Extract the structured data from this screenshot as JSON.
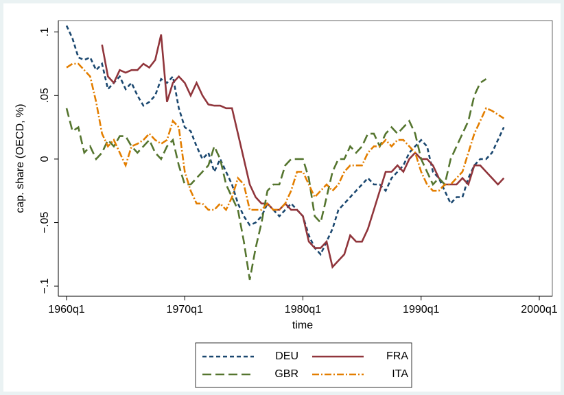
{
  "chart_data": {
    "type": "line",
    "y_label": "cap. share (OECD, %)",
    "x_label": "time",
    "x": [
      "1960q1",
      "1960q3",
      "1961q1",
      "1961q3",
      "1962q1",
      "1962q3",
      "1963q1",
      "1963q3",
      "1964q1",
      "1964q3",
      "1965q1",
      "1965q3",
      "1966q1",
      "1966q3",
      "1967q1",
      "1967q3",
      "1968q1",
      "1968q3",
      "1969q1",
      "1969q3",
      "1970q1",
      "1970q3",
      "1971q1",
      "1971q3",
      "1972q1",
      "1972q3",
      "1973q1",
      "1973q3",
      "1974q1",
      "1974q3",
      "1975q1",
      "1975q3",
      "1976q1",
      "1976q3",
      "1977q1",
      "1977q3",
      "1978q1",
      "1978q3",
      "1979q1",
      "1979q3",
      "1980q1",
      "1980q3",
      "1981q1",
      "1981q3",
      "1982q1",
      "1982q3",
      "1983q1",
      "1983q3",
      "1984q1",
      "1984q3",
      "1985q1",
      "1985q3",
      "1986q1",
      "1986q3",
      "1987q1",
      "1987q3",
      "1988q1",
      "1988q3",
      "1989q1",
      "1989q3",
      "1990q1",
      "1990q3",
      "1991q1",
      "1991q3",
      "1992q1",
      "1992q3",
      "1993q1",
      "1993q3",
      "1994q1",
      "1994q3",
      "1995q1",
      "1995q3",
      "1996q1",
      "1996q3",
      "1997q1"
    ],
    "series": [
      {
        "name": "DEU",
        "color": "#1a476f",
        "dash": "6,4",
        "values": [
          0.105,
          0.095,
          0.08,
          0.078,
          0.08,
          0.07,
          0.075,
          0.055,
          0.06,
          0.065,
          0.055,
          0.06,
          0.05,
          0.042,
          0.045,
          0.05,
          0.063,
          0.06,
          0.065,
          0.04,
          0.025,
          0.022,
          0.01,
          0,
          0.005,
          -0.01,
          0,
          -0.01,
          -0.02,
          -0.035,
          -0.045,
          -0.052,
          -0.05,
          -0.045,
          -0.035,
          -0.04,
          -0.045,
          -0.04,
          -0.035,
          -0.04,
          -0.045,
          -0.06,
          -0.07,
          -0.075,
          -0.065,
          -0.055,
          -0.04,
          -0.035,
          -0.03,
          -0.025,
          -0.02,
          -0.015,
          -0.02,
          -0.02,
          -0.025,
          -0.015,
          -0.01,
          -0.005,
          0.005,
          0.01,
          0.015,
          0.01,
          -0.01,
          -0.015,
          -0.025,
          -0.035,
          -0.03,
          -0.03,
          -0.015,
          -0.005,
          0,
          0,
          0.005,
          0.015,
          0.025
        ]
      },
      {
        "name": "FRA",
        "color": "#90353b",
        "dash": "",
        "values": [
          null,
          null,
          null,
          null,
          null,
          null,
          0.09,
          0.065,
          0.06,
          0.07,
          0.068,
          0.07,
          0.07,
          0.075,
          0.072,
          0.078,
          0.098,
          0.045,
          0.06,
          0.065,
          0.06,
          0.05,
          0.06,
          0.05,
          0.043,
          0.042,
          0.042,
          0.04,
          0.04,
          0.02,
          0,
          -0.02,
          -0.03,
          -0.035,
          -0.035,
          -0.04,
          -0.04,
          -0.035,
          -0.04,
          -0.04,
          -0.045,
          -0.065,
          -0.07,
          -0.07,
          -0.065,
          -0.085,
          -0.08,
          -0.075,
          -0.06,
          -0.065,
          -0.065,
          -0.055,
          -0.04,
          -0.025,
          -0.01,
          -0.01,
          -0.005,
          -0.01,
          0,
          0.005,
          0,
          0,
          -0.005,
          -0.015,
          -0.02,
          -0.02,
          -0.02,
          -0.015,
          -0.02,
          -0.005,
          -0.005,
          -0.01,
          -0.015,
          -0.02,
          -0.015
        ]
      },
      {
        "name": "GBR",
        "color": "#55752f",
        "dash": "13,6",
        "values": [
          0.04,
          0.022,
          0.025,
          0.005,
          0.01,
          0,
          0.005,
          0.015,
          0.01,
          0.018,
          0.018,
          0.01,
          0.005,
          0.01,
          0.015,
          0.005,
          0,
          0.01,
          0.015,
          -0.005,
          -0.02,
          -0.02,
          -0.015,
          -0.01,
          -0.005,
          0.01,
          0,
          -0.02,
          -0.03,
          -0.04,
          -0.065,
          -0.095,
          -0.07,
          -0.05,
          -0.025,
          -0.02,
          -0.02,
          -0.005,
          0,
          0,
          0,
          -0.015,
          -0.045,
          -0.05,
          -0.03,
          -0.01,
          0,
          0,
          0.01,
          0.005,
          0.01,
          0.02,
          0.02,
          0.01,
          0.02,
          0.025,
          0.02,
          0.025,
          0.03,
          0.02,
          0,
          -0.01,
          -0.02,
          -0.015,
          -0.02,
          0,
          0.01,
          0.02,
          0.03,
          0.05,
          0.06,
          0.063,
          null,
          null,
          null
        ]
      },
      {
        "name": "ITA",
        "color": "#e37e00",
        "dash": "10,3,2,3",
        "values": [
          0.072,
          0.075,
          0.075,
          0.07,
          0.065,
          0.045,
          0.02,
          0.01,
          0.015,
          0.005,
          -0.005,
          0.01,
          0.012,
          0.015,
          0.02,
          0.015,
          0.012,
          0.015,
          0.03,
          0.025,
          -0.01,
          -0.025,
          -0.035,
          -0.035,
          -0.04,
          -0.04,
          -0.035,
          -0.04,
          -0.03,
          -0.015,
          -0.02,
          -0.04,
          -0.04,
          -0.04,
          -0.035,
          -0.04,
          -0.04,
          -0.035,
          -0.025,
          -0.01,
          -0.01,
          -0.02,
          -0.03,
          -0.025,
          -0.02,
          -0.025,
          -0.02,
          -0.01,
          -0.005,
          -0.005,
          -0.005,
          0.005,
          0.01,
          0.01,
          0.015,
          0.01,
          0.015,
          0.015,
          0.01,
          0.005,
          -0.01,
          -0.02,
          -0.025,
          -0.025,
          -0.02,
          -0.02,
          -0.015,
          -0.01,
          0.005,
          0.02,
          0.03,
          0.04,
          0.038,
          0.035,
          0.032
        ]
      }
    ],
    "xlim": [
      "1960q1",
      "2000q1"
    ],
    "xticks": [
      "1960q1",
      "1970q1",
      "1980q1",
      "1990q1",
      "2000q1"
    ],
    "ylim": [
      -0.108,
      0.109
    ],
    "yticks": [
      {
        "value": -0.1,
        "label": "−.1"
      },
      {
        "value": -0.05,
        "label": "−.05"
      },
      {
        "value": 0,
        "label": "0"
      },
      {
        "value": 0.05,
        "label": ".05"
      },
      {
        "value": 0.1,
        "label": ".1"
      }
    ],
    "legend": "bottom"
  }
}
